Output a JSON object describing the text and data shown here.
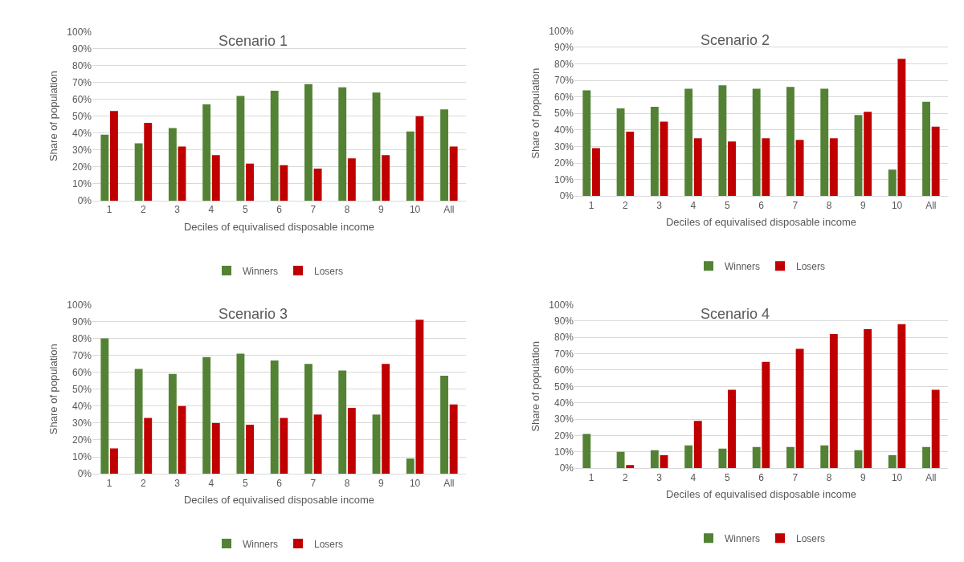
{
  "chart_data": [
    {
      "type": "bar",
      "title": "Scenario 1",
      "xlabel": "Deciles of equivalised disposable income",
      "ylabel": "Share of population",
      "categories": [
        "1",
        "2",
        "3",
        "4",
        "5",
        "6",
        "7",
        "8",
        "9",
        "10",
        "All"
      ],
      "series": [
        {
          "name": "Winners",
          "color": "#548235",
          "values": [
            39,
            34,
            43,
            57,
            62,
            65,
            69,
            67,
            64,
            41,
            54
          ]
        },
        {
          "name": "Losers",
          "color": "#c00000",
          "values": [
            53,
            46,
            32,
            27,
            22,
            21,
            19,
            25,
            27,
            50,
            32
          ]
        }
      ],
      "ylim": [
        0,
        100
      ],
      "yticks": [
        {
          "value": 0,
          "label": "0%"
        },
        {
          "value": 10,
          "label": "10%"
        },
        {
          "value": 20,
          "label": "20%"
        },
        {
          "value": 30,
          "label": "30%"
        },
        {
          "value": 40,
          "label": "40%"
        },
        {
          "value": 50,
          "label": "50%"
        },
        {
          "value": 60,
          "label": "60%"
        },
        {
          "value": 70,
          "label": "70%"
        },
        {
          "value": 80,
          "label": "80%"
        },
        {
          "value": 90,
          "label": "90%"
        },
        {
          "value": 100,
          "label": "100%"
        }
      ],
      "grid": "y",
      "legend": "bottom"
    },
    {
      "type": "bar",
      "title": "Scenario 2",
      "xlabel": "Deciles of equivalised disposable income",
      "ylabel": "Share of population",
      "categories": [
        "1",
        "2",
        "3",
        "4",
        "5",
        "6",
        "7",
        "8",
        "9",
        "10",
        "All"
      ],
      "series": [
        {
          "name": "Winners",
          "color": "#548235",
          "values": [
            64,
            53,
            54,
            65,
            67,
            65,
            66,
            65,
            49,
            16,
            57
          ]
        },
        {
          "name": "Losers",
          "color": "#c00000",
          "values": [
            29,
            39,
            45,
            35,
            33,
            35,
            34,
            35,
            51,
            83,
            42
          ]
        }
      ],
      "ylim": [
        0,
        100
      ],
      "yticks": [
        {
          "value": 0,
          "label": "0%"
        },
        {
          "value": 10,
          "label": "10%"
        },
        {
          "value": 20,
          "label": "20%"
        },
        {
          "value": 30,
          "label": "30%"
        },
        {
          "value": 40,
          "label": "40%"
        },
        {
          "value": 50,
          "label": "50%"
        },
        {
          "value": 60,
          "label": "60%"
        },
        {
          "value": 70,
          "label": "70%"
        },
        {
          "value": 80,
          "label": "80%"
        },
        {
          "value": 90,
          "label": "90%"
        },
        {
          "value": 100,
          "label": "100%"
        }
      ],
      "grid": "y",
      "legend": "bottom"
    },
    {
      "type": "bar",
      "title": "Scenario 3",
      "xlabel": "Deciles of equivalised disposable income",
      "ylabel": "Share of population",
      "categories": [
        "1",
        "2",
        "3",
        "4",
        "5",
        "6",
        "7",
        "8",
        "9",
        "10",
        "All"
      ],
      "series": [
        {
          "name": "Winners",
          "color": "#548235",
          "values": [
            80,
            62,
            59,
            69,
            71,
            67,
            65,
            61,
            35,
            9,
            58
          ]
        },
        {
          "name": "Losers",
          "color": "#c00000",
          "values": [
            15,
            33,
            40,
            30,
            29,
            33,
            35,
            39,
            65,
            91,
            41
          ]
        }
      ],
      "ylim": [
        0,
        100
      ],
      "yticks": [
        {
          "value": 0,
          "label": "0%"
        },
        {
          "value": 10,
          "label": "10%"
        },
        {
          "value": 20,
          "label": "20%"
        },
        {
          "value": 30,
          "label": "30%"
        },
        {
          "value": 40,
          "label": "40%"
        },
        {
          "value": 50,
          "label": "50%"
        },
        {
          "value": 60,
          "label": "60%"
        },
        {
          "value": 70,
          "label": "70%"
        },
        {
          "value": 80,
          "label": "80%"
        },
        {
          "value": 90,
          "label": "90%"
        },
        {
          "value": 100,
          "label": "100%"
        }
      ],
      "grid": "y",
      "legend": "bottom"
    },
    {
      "type": "bar",
      "title": "Scenario 4",
      "xlabel": "Deciles of equivalised disposable income",
      "ylabel": "Share of population",
      "categories": [
        "1",
        "2",
        "3",
        "4",
        "5",
        "6",
        "7",
        "8",
        "9",
        "10",
        "All"
      ],
      "series": [
        {
          "name": "Winners",
          "color": "#548235",
          "values": [
            21,
            10,
            11,
            14,
            12,
            13,
            13,
            14,
            11,
            8,
            13
          ]
        },
        {
          "name": "Losers",
          "color": "#c00000",
          "values": [
            0,
            2,
            8,
            29,
            48,
            65,
            73,
            82,
            85,
            88,
            48
          ]
        }
      ],
      "ylim": [
        0,
        100
      ],
      "yticks": [
        {
          "value": 0,
          "label": "0%"
        },
        {
          "value": 10,
          "label": "10%"
        },
        {
          "value": 20,
          "label": "20%"
        },
        {
          "value": 30,
          "label": "30%"
        },
        {
          "value": 40,
          "label": "40%"
        },
        {
          "value": 50,
          "label": "50%"
        },
        {
          "value": 60,
          "label": "60%"
        },
        {
          "value": 70,
          "label": "70%"
        },
        {
          "value": 80,
          "label": "80%"
        },
        {
          "value": 90,
          "label": "90%"
        },
        {
          "value": 100,
          "label": "100%"
        }
      ],
      "grid": "y",
      "legend": "bottom"
    }
  ]
}
